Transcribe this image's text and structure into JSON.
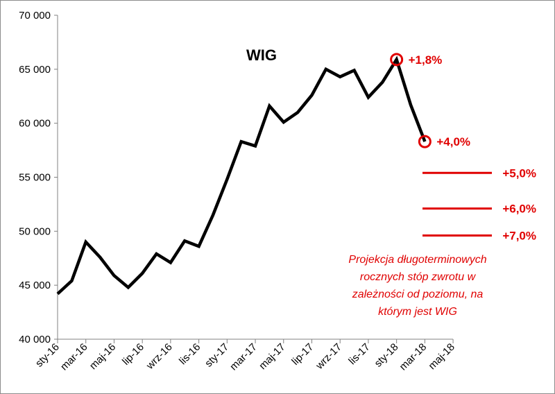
{
  "chart_data": {
    "type": "line",
    "title": "WIG",
    "xlabel": "",
    "ylabel": "",
    "ylim": [
      40000,
      70000
    ],
    "yticks": [
      "40 000",
      "45 000",
      "50 000",
      "55 000",
      "60 000",
      "65 000",
      "70 000"
    ],
    "xticks": [
      "sty-16",
      "mar-16",
      "maj-16",
      "lip-16",
      "wrz-16",
      "lis-16",
      "sty-17",
      "mar-17",
      "maj-17",
      "lip-17",
      "wrz-17",
      "lis-17",
      "sty-18",
      "mar-18",
      "maj-18"
    ],
    "grid": false,
    "legend": "none",
    "months": [
      "2016-01",
      "2016-02",
      "2016-03",
      "2016-04",
      "2016-05",
      "2016-06",
      "2016-07",
      "2016-08",
      "2016-09",
      "2016-10",
      "2016-11",
      "2016-12",
      "2017-01",
      "2017-02",
      "2017-03",
      "2017-04",
      "2017-05",
      "2017-06",
      "2017-07",
      "2017-08",
      "2017-09",
      "2017-10",
      "2017-11",
      "2017-12",
      "2018-01",
      "2018-02",
      "2018-03"
    ],
    "series": [
      {
        "color": "#000000",
        "values": [
          44200,
          45400,
          49000,
          47600,
          45900,
          44800,
          46100,
          47900,
          47100,
          49100,
          48600,
          51500,
          54800,
          58300,
          57900,
          61600,
          60100,
          61000,
          62600,
          65000,
          64300,
          64900,
          62400,
          63800,
          65900,
          61700,
          58300
        ]
      }
    ],
    "markers": [
      {
        "month": "2018-01",
        "value": 65900,
        "label": "+1,8%"
      },
      {
        "month": "2018-03",
        "value": 58300,
        "label": "+4,0%"
      }
    ],
    "projection_levels": [
      {
        "value": 55400,
        "label": "+5,0%"
      },
      {
        "value": 52100,
        "label": "+6,0%"
      },
      {
        "value": 49600,
        "label": "+7,0%"
      }
    ],
    "annotation_lines": [
      "Projekcja długoterminowych",
      "rocznych stóp zwrotu w",
      "zależności od poziomu, na",
      "którym jest WIG"
    ],
    "colors": {
      "line": "#000000",
      "accent": "#e00000",
      "axis": "#808080"
    }
  }
}
